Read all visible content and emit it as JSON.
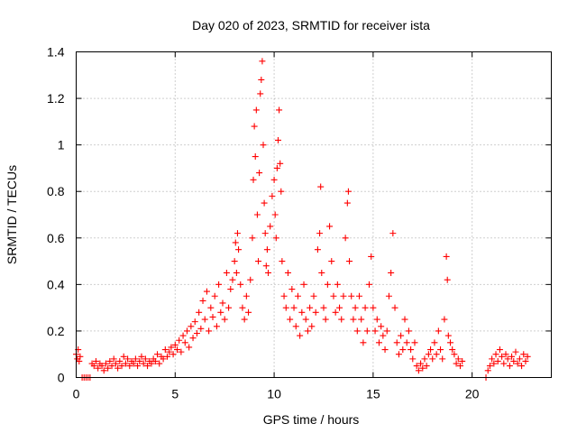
{
  "chart_data": {
    "type": "scatter",
    "title": "Day 020 of 2023, SRMTID for receiver ista",
    "xlabel": "GPS time / hours",
    "ylabel": "SRMTID / TECUs",
    "xlim": [
      0,
      24
    ],
    "ylim": [
      0,
      1.4
    ],
    "xticks": [
      "0",
      "5",
      "10",
      "15",
      "20"
    ],
    "yticks": [
      "0",
      "0.2",
      "0.4",
      "0.6",
      "0.8",
      "1",
      "1.2",
      "1.4"
    ],
    "grid": true,
    "marker": "+",
    "color": "#ff0000",
    "series": [
      {
        "name": "SRMTID",
        "points": [
          [
            0.0,
            0.1
          ],
          [
            0.05,
            0.08
          ],
          [
            0.1,
            0.12
          ],
          [
            0.15,
            0.07
          ],
          [
            0.2,
            0.09
          ],
          [
            0.3,
            0.0
          ],
          [
            0.4,
            0.0
          ],
          [
            0.5,
            0.0
          ],
          [
            0.6,
            0.0
          ],
          [
            0.7,
            0.0
          ],
          [
            0.8,
            0.06
          ],
          [
            0.9,
            0.05
          ],
          [
            1.0,
            0.07
          ],
          [
            1.1,
            0.04
          ],
          [
            1.2,
            0.06
          ],
          [
            1.3,
            0.05
          ],
          [
            1.4,
            0.03
          ],
          [
            1.5,
            0.06
          ],
          [
            1.6,
            0.04
          ],
          [
            1.7,
            0.07
          ],
          [
            1.8,
            0.05
          ],
          [
            1.9,
            0.08
          ],
          [
            2.0,
            0.06
          ],
          [
            2.1,
            0.04
          ],
          [
            2.2,
            0.07
          ],
          [
            2.3,
            0.05
          ],
          [
            2.4,
            0.09
          ],
          [
            2.5,
            0.06
          ],
          [
            2.6,
            0.08
          ],
          [
            2.7,
            0.05
          ],
          [
            2.8,
            0.07
          ],
          [
            2.9,
            0.06
          ],
          [
            3.0,
            0.08
          ],
          [
            3.1,
            0.05
          ],
          [
            3.2,
            0.07
          ],
          [
            3.3,
            0.09
          ],
          [
            3.4,
            0.06
          ],
          [
            3.5,
            0.08
          ],
          [
            3.6,
            0.05
          ],
          [
            3.7,
            0.07
          ],
          [
            3.8,
            0.06
          ],
          [
            3.9,
            0.08
          ],
          [
            4.0,
            0.07
          ],
          [
            4.1,
            0.1
          ],
          [
            4.2,
            0.06
          ],
          [
            4.3,
            0.09
          ],
          [
            4.4,
            0.08
          ],
          [
            4.5,
            0.12
          ],
          [
            4.6,
            0.09
          ],
          [
            4.7,
            0.11
          ],
          [
            4.8,
            0.13
          ],
          [
            4.9,
            0.1
          ],
          [
            5.0,
            0.14
          ],
          [
            5.1,
            0.12
          ],
          [
            5.2,
            0.16
          ],
          [
            5.3,
            0.11
          ],
          [
            5.4,
            0.18
          ],
          [
            5.5,
            0.15
          ],
          [
            5.6,
            0.2
          ],
          [
            5.7,
            0.13
          ],
          [
            5.8,
            0.22
          ],
          [
            5.9,
            0.17
          ],
          [
            6.0,
            0.24
          ],
          [
            6.1,
            0.19
          ],
          [
            6.2,
            0.28
          ],
          [
            6.3,
            0.21
          ],
          [
            6.4,
            0.33
          ],
          [
            6.5,
            0.25
          ],
          [
            6.6,
            0.37
          ],
          [
            6.7,
            0.2
          ],
          [
            6.8,
            0.3
          ],
          [
            6.9,
            0.26
          ],
          [
            7.0,
            0.35
          ],
          [
            7.1,
            0.22
          ],
          [
            7.2,
            0.4
          ],
          [
            7.3,
            0.28
          ],
          [
            7.4,
            0.32
          ],
          [
            7.5,
            0.25
          ],
          [
            7.6,
            0.45
          ],
          [
            7.7,
            0.3
          ],
          [
            7.8,
            0.38
          ],
          [
            7.9,
            0.42
          ],
          [
            8.0,
            0.5
          ],
          [
            8.05,
            0.58
          ],
          [
            8.1,
            0.45
          ],
          [
            8.15,
            0.62
          ],
          [
            8.2,
            0.55
          ],
          [
            8.3,
            0.4
          ],
          [
            8.4,
            0.3
          ],
          [
            8.5,
            0.25
          ],
          [
            8.6,
            0.35
          ],
          [
            8.7,
            0.28
          ],
          [
            8.8,
            0.42
          ],
          [
            8.9,
            0.6
          ],
          [
            8.95,
            0.85
          ],
          [
            9.0,
            1.08
          ],
          [
            9.05,
            0.95
          ],
          [
            9.1,
            1.15
          ],
          [
            9.15,
            0.7
          ],
          [
            9.2,
            0.5
          ],
          [
            9.25,
            0.88
          ],
          [
            9.3,
            1.22
          ],
          [
            9.35,
            1.28
          ],
          [
            9.4,
            1.36
          ],
          [
            9.45,
            1.0
          ],
          [
            9.5,
            0.75
          ],
          [
            9.55,
            0.62
          ],
          [
            9.6,
            0.48
          ],
          [
            9.65,
            0.55
          ],
          [
            9.7,
            0.45
          ],
          [
            9.8,
            0.65
          ],
          [
            9.9,
            0.78
          ],
          [
            10.0,
            0.85
          ],
          [
            10.05,
            0.7
          ],
          [
            10.1,
            0.6
          ],
          [
            10.15,
            0.9
          ],
          [
            10.2,
            1.02
          ],
          [
            10.25,
            1.15
          ],
          [
            10.3,
            0.92
          ],
          [
            10.35,
            0.8
          ],
          [
            10.4,
            0.5
          ],
          [
            10.5,
            0.35
          ],
          [
            10.6,
            0.3
          ],
          [
            10.7,
            0.45
          ],
          [
            10.8,
            0.25
          ],
          [
            10.9,
            0.38
          ],
          [
            11.0,
            0.3
          ],
          [
            11.1,
            0.22
          ],
          [
            11.2,
            0.35
          ],
          [
            11.3,
            0.18
          ],
          [
            11.4,
            0.28
          ],
          [
            11.5,
            0.4
          ],
          [
            11.6,
            0.25
          ],
          [
            11.7,
            0.2
          ],
          [
            11.8,
            0.3
          ],
          [
            11.9,
            0.22
          ],
          [
            12.0,
            0.35
          ],
          [
            12.1,
            0.28
          ],
          [
            12.2,
            0.55
          ],
          [
            12.3,
            0.62
          ],
          [
            12.35,
            0.82
          ],
          [
            12.4,
            0.45
          ],
          [
            12.5,
            0.3
          ],
          [
            12.6,
            0.25
          ],
          [
            12.7,
            0.4
          ],
          [
            12.8,
            0.65
          ],
          [
            12.9,
            0.5
          ],
          [
            13.0,
            0.35
          ],
          [
            13.1,
            0.28
          ],
          [
            13.2,
            0.4
          ],
          [
            13.3,
            0.3
          ],
          [
            13.4,
            0.25
          ],
          [
            13.5,
            0.35
          ],
          [
            13.6,
            0.6
          ],
          [
            13.7,
            0.75
          ],
          [
            13.75,
            0.8
          ],
          [
            13.8,
            0.5
          ],
          [
            13.9,
            0.35
          ],
          [
            14.0,
            0.25
          ],
          [
            14.1,
            0.3
          ],
          [
            14.2,
            0.2
          ],
          [
            14.3,
            0.35
          ],
          [
            14.4,
            0.25
          ],
          [
            14.5,
            0.15
          ],
          [
            14.6,
            0.3
          ],
          [
            14.7,
            0.2
          ],
          [
            14.8,
            0.4
          ],
          [
            14.9,
            0.52
          ],
          [
            15.0,
            0.3
          ],
          [
            15.1,
            0.2
          ],
          [
            15.2,
            0.25
          ],
          [
            15.3,
            0.15
          ],
          [
            15.4,
            0.22
          ],
          [
            15.5,
            0.18
          ],
          [
            15.6,
            0.12
          ],
          [
            15.7,
            0.2
          ],
          [
            15.8,
            0.35
          ],
          [
            15.9,
            0.45
          ],
          [
            16.0,
            0.62
          ],
          [
            16.1,
            0.3
          ],
          [
            16.2,
            0.15
          ],
          [
            16.3,
            0.1
          ],
          [
            16.4,
            0.18
          ],
          [
            16.5,
            0.12
          ],
          [
            16.6,
            0.25
          ],
          [
            16.7,
            0.15
          ],
          [
            16.8,
            0.2
          ],
          [
            16.9,
            0.12
          ],
          [
            17.0,
            0.08
          ],
          [
            17.1,
            0.15
          ],
          [
            17.2,
            0.05
          ],
          [
            17.3,
            0.03
          ],
          [
            17.4,
            0.06
          ],
          [
            17.5,
            0.04
          ],
          [
            17.6,
            0.08
          ],
          [
            17.7,
            0.05
          ],
          [
            17.8,
            0.1
          ],
          [
            17.9,
            0.12
          ],
          [
            18.0,
            0.08
          ],
          [
            18.1,
            0.15
          ],
          [
            18.2,
            0.1
          ],
          [
            18.3,
            0.2
          ],
          [
            18.4,
            0.12
          ],
          [
            18.5,
            0.08
          ],
          [
            18.6,
            0.25
          ],
          [
            18.7,
            0.52
          ],
          [
            18.75,
            0.42
          ],
          [
            18.8,
            0.18
          ],
          [
            18.9,
            0.15
          ],
          [
            19.0,
            0.12
          ],
          [
            19.1,
            0.1
          ],
          [
            19.2,
            0.06
          ],
          [
            19.3,
            0.08
          ],
          [
            19.4,
            0.05
          ],
          [
            19.5,
            0.07
          ],
          [
            20.7,
            0.0
          ],
          [
            20.8,
            0.03
          ],
          [
            20.9,
            0.05
          ],
          [
            21.0,
            0.08
          ],
          [
            21.1,
            0.06
          ],
          [
            21.2,
            0.1
          ],
          [
            21.3,
            0.07
          ],
          [
            21.4,
            0.12
          ],
          [
            21.5,
            0.09
          ],
          [
            21.6,
            0.06
          ],
          [
            21.7,
            0.1
          ],
          [
            21.8,
            0.08
          ],
          [
            21.9,
            0.05
          ],
          [
            22.0,
            0.09
          ],
          [
            22.1,
            0.07
          ],
          [
            22.2,
            0.11
          ],
          [
            22.3,
            0.06
          ],
          [
            22.4,
            0.08
          ],
          [
            22.5,
            0.05
          ],
          [
            22.6,
            0.1
          ],
          [
            22.7,
            0.07
          ],
          [
            22.8,
            0.09
          ]
        ]
      }
    ]
  }
}
